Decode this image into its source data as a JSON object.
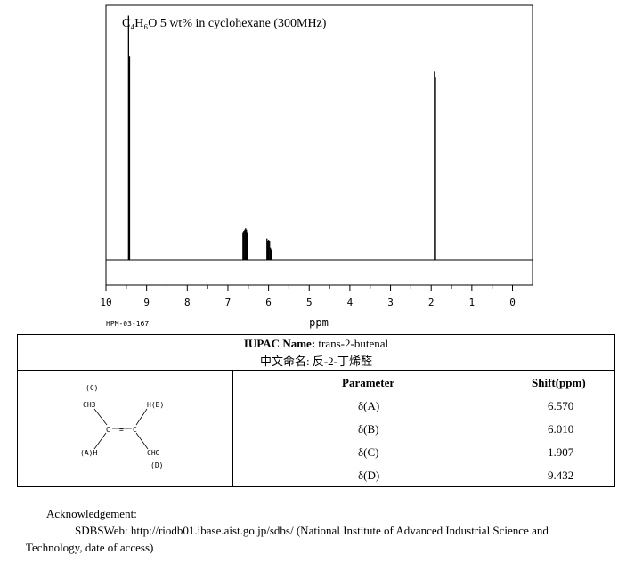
{
  "chart_data": {
    "type": "nmr-spectrum",
    "title": "C₄H₆O 5 wt% in cyclohexane (300MHz)",
    "xlabel": "ppm",
    "xlim": [
      10,
      0
    ],
    "xticks": [
      10,
      9,
      8,
      7,
      6,
      5,
      4,
      3,
      2,
      1,
      0
    ],
    "code": "HPM-03-167",
    "peaks": [
      {
        "x": 9.445,
        "h": 0.96
      },
      {
        "x": 9.42,
        "h": 0.8
      },
      {
        "x": 6.63,
        "h": 0.11
      },
      {
        "x": 6.61,
        "h": 0.115
      },
      {
        "x": 6.585,
        "h": 0.12
      },
      {
        "x": 6.565,
        "h": 0.125
      },
      {
        "x": 6.545,
        "h": 0.12
      },
      {
        "x": 6.525,
        "h": 0.11
      },
      {
        "x": 6.04,
        "h": 0.085
      },
      {
        "x": 6.02,
        "h": 0.075
      },
      {
        "x": 6.0,
        "h": 0.08
      },
      {
        "x": 5.975,
        "h": 0.075
      },
      {
        "x": 5.955,
        "h": 0.05
      },
      {
        "x": 5.94,
        "h": 0.04
      },
      {
        "x": 1.92,
        "h": 0.74
      },
      {
        "x": 1.895,
        "h": 0.72
      }
    ]
  },
  "table": {
    "iupac_label": "IUPAC Name:",
    "iupac_value": "trans-2-butenal",
    "chinese_label": "中文命名:",
    "chinese_value": "反-2-丁烯醛",
    "param_header": "Parameter",
    "shift_header": "Shift(ppm)",
    "rows": [
      {
        "param": "δ(A)",
        "shift": "6.570"
      },
      {
        "param": "δ(B)",
        "shift": "6.010"
      },
      {
        "param": "δ(C)",
        "shift": "1.907"
      },
      {
        "param": "δ(D)",
        "shift": "9.432"
      }
    ]
  },
  "structure": {
    "c_label": "(C)",
    "ch3": "CH3",
    "hb": "H(B)",
    "ah": "(A)H",
    "cho": "CHO",
    "d_label": "(D)",
    "c_atom": "C",
    "eq": "="
  },
  "ack": {
    "title": "Acknowledgement:",
    "line1": "SDBSWeb: http://riodb01.ibase.aist.go.jp/sdbs/ (National Institute of Advanced Industrial Science and",
    "line2": "Technology, date of access)"
  }
}
